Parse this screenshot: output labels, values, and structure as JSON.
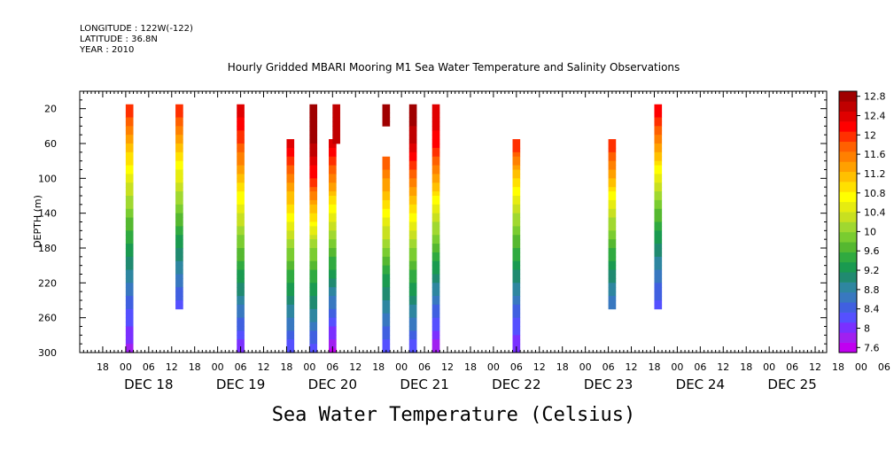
{
  "header": {
    "longitude": "LONGITUDE : 122W(-122)",
    "latitude": "LATITUDE : 36.8N",
    "year": "YEAR : 2010"
  },
  "chart_data": {
    "type": "heatmap",
    "title": "Hourly Gridded MBARI Mooring M1 Sea Water Temperature and Salinity Observations",
    "xlabel": "Sea Water Temperature (Celsius)",
    "ylabel": "DEPTH (m)",
    "y_axis": {
      "range": [
        300,
        0
      ],
      "inverted": true,
      "tick_labels": [
        20,
        60,
        100,
        140,
        180,
        220,
        260,
        300
      ]
    },
    "x_axis": {
      "unit": "hours since 2010-12-17 12:00",
      "range": [
        0,
        195
      ],
      "tick_labels": [
        "18",
        "00",
        "06",
        "12",
        "18",
        "00",
        "06",
        "12",
        "18",
        "00",
        "06",
        "12",
        "18",
        "00",
        "06",
        "12",
        "18",
        "00",
        "06",
        "12",
        "18",
        "00",
        "06",
        "12",
        "18",
        "00",
        "06",
        "12",
        "18",
        "00",
        "06",
        "12",
        "18",
        "00",
        "06",
        "12"
      ],
      "day_labels": [
        {
          "label": "DEC 18",
          "hour": 18
        },
        {
          "label": "DEC 19",
          "hour": 42
        },
        {
          "label": "DEC 20",
          "hour": 66
        },
        {
          "label": "DEC 21",
          "hour": 90
        },
        {
          "label": "DEC 22",
          "hour": 114
        },
        {
          "label": "DEC 23",
          "hour": 138
        },
        {
          "label": "DEC 24",
          "hour": 162
        },
        {
          "label": "DEC 25",
          "hour": 186
        }
      ]
    },
    "colorbar": {
      "labels": [
        "12.8",
        "12.4",
        "12",
        "11.6",
        "11.2",
        "10.8",
        "10.4",
        "10",
        "9.6",
        "9.2",
        "8.8",
        "8.4",
        "8",
        "7.6"
      ],
      "min": 7.6,
      "max": 12.8,
      "step": 0.2,
      "colors": [
        "#c000f0",
        "#a020f0",
        "#7a30ff",
        "#5550ff",
        "#4060e0",
        "#3878c0",
        "#2e86a0",
        "#208a70",
        "#1a9a50",
        "#30aa40",
        "#55b830",
        "#7acc30",
        "#a0d830",
        "#c8e020",
        "#e6ec10",
        "#ffff00",
        "#ffe000",
        "#ffc000",
        "#ffa000",
        "#ff8000",
        "#ff6000",
        "#ff3000",
        "#ff0000",
        "#e00000",
        "#c00000",
        "#a00000"
      ]
    },
    "series": [
      {
        "hour": 13,
        "depth_range": [
          20,
          300
        ],
        "values": [
          12.0,
          11.2,
          10.5,
          9.9,
          9.3,
          8.8,
          8.3,
          7.9
        ]
      },
      {
        "hour": 26,
        "depth_range": [
          20,
          250
        ],
        "values": [
          12.0,
          11.2,
          10.5,
          9.9,
          9.3,
          8.8,
          8.3
        ]
      },
      {
        "hour": 42,
        "depth_range": [
          20,
          300
        ],
        "values": [
          12.3,
          11.8,
          11.1,
          10.4,
          9.8,
          9.2,
          8.6,
          8.0
        ]
      },
      {
        "hour": 55,
        "depth_range": [
          60,
          300
        ],
        "values": [
          12.3,
          11.5,
          10.8,
          10.0,
          9.4,
          8.8,
          8.2
        ]
      },
      {
        "hour": 61,
        "depth_range": [
          20,
          300
        ],
        "values": [
          12.7,
          12.6,
          12.0,
          11.0,
          10.0,
          9.4,
          8.9,
          8.2
        ]
      },
      {
        "hour": 66,
        "depth_range": [
          60,
          300
        ],
        "values": [
          12.3,
          11.5,
          10.6,
          9.8,
          9.1,
          8.4,
          7.7
        ]
      },
      {
        "hour": 67,
        "depth_range": [
          20,
          60
        ],
        "values": [
          12.4
        ]
      },
      {
        "hour": 80,
        "depth_range": [
          20,
          40
        ],
        "values": [
          12.8
        ]
      },
      {
        "hour": 80,
        "depth_range": [
          80,
          300
        ],
        "values": [
          11.8,
          11.0,
          10.2,
          9.4,
          8.8,
          8.2
        ]
      },
      {
        "hour": 87,
        "depth_range": [
          20,
          300
        ],
        "values": [
          12.8,
          12.4,
          11.6,
          10.8,
          10.0,
          9.4,
          8.8,
          8.2
        ]
      },
      {
        "hour": 93,
        "depth_range": [
          20,
          300
        ],
        "values": [
          12.4,
          12.1,
          11.3,
          10.4,
          9.7,
          9.0,
          8.4,
          7.8
        ]
      },
      {
        "hour": 114,
        "depth_range": [
          60,
          300
        ],
        "values": [
          12.0,
          11.0,
          10.2,
          9.6,
          9.0,
          8.4,
          8.0
        ]
      },
      {
        "hour": 139,
        "depth_range": [
          60,
          250
        ],
        "values": [
          12.0,
          11.2,
          10.4,
          9.7,
          9.1,
          8.6
        ]
      },
      {
        "hour": 151,
        "depth_range": [
          20,
          250
        ],
        "values": [
          12.2,
          11.4,
          10.6,
          9.8,
          9.2,
          8.7,
          8.3
        ]
      }
    ]
  }
}
